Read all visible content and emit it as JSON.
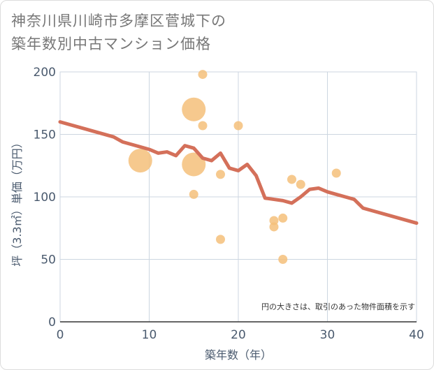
{
  "title_lines": [
    "神奈川県川崎市多摩区菅城下の",
    "築年数別中古マンション価格"
  ],
  "note": "円の大きさは、取引のあった物件面積を示す",
  "colors": {
    "bubble": "#f5c07a",
    "line": "#d4705a",
    "grid": "#ccd6e0",
    "axis": "#4a5a6e"
  },
  "chart_data": {
    "type": "scatter",
    "title": "神奈川県川崎市多摩区菅城下の築年数別中古マンション価格",
    "xlabel": "築年数（年）",
    "ylabel": "坪（3.3㎡）単価（万円）",
    "xlim": [
      0,
      40
    ],
    "ylim": [
      0,
      200
    ],
    "x_ticks": [
      0,
      10,
      20,
      30,
      40
    ],
    "y_ticks": [
      0,
      50,
      100,
      150,
      200
    ],
    "grid": true,
    "bubbles": [
      {
        "x": 16,
        "y": 198,
        "size": "small"
      },
      {
        "x": 15,
        "y": 170,
        "size": "large"
      },
      {
        "x": 16,
        "y": 157,
        "size": "small"
      },
      {
        "x": 20,
        "y": 157,
        "size": "small"
      },
      {
        "x": 9,
        "y": 129,
        "size": "large"
      },
      {
        "x": 15,
        "y": 126,
        "size": "large"
      },
      {
        "x": 18,
        "y": 118,
        "size": "small"
      },
      {
        "x": 26,
        "y": 114,
        "size": "small"
      },
      {
        "x": 27,
        "y": 110,
        "size": "small"
      },
      {
        "x": 31,
        "y": 119,
        "size": "small"
      },
      {
        "x": 15,
        "y": 102,
        "size": "small"
      },
      {
        "x": 25,
        "y": 83,
        "size": "small"
      },
      {
        "x": 24,
        "y": 81,
        "size": "small"
      },
      {
        "x": 24,
        "y": 76,
        "size": "small"
      },
      {
        "x": 18,
        "y": 66,
        "size": "small"
      },
      {
        "x": 25,
        "y": 50,
        "size": "small"
      }
    ],
    "trend_line": {
      "x": [
        0,
        6,
        7,
        9,
        10,
        11,
        12,
        13,
        14,
        15,
        16,
        17,
        18,
        19,
        20,
        21,
        22,
        23,
        24,
        25,
        26,
        27,
        28,
        29,
        30,
        31,
        32,
        33,
        34,
        40
      ],
      "y": [
        160,
        148,
        144,
        140,
        138,
        135,
        136,
        133,
        141,
        139,
        131,
        129,
        135,
        123,
        121,
        126,
        117,
        99,
        98,
        97,
        95,
        100,
        106,
        107,
        104,
        102,
        100,
        98,
        91,
        79
      ]
    }
  }
}
